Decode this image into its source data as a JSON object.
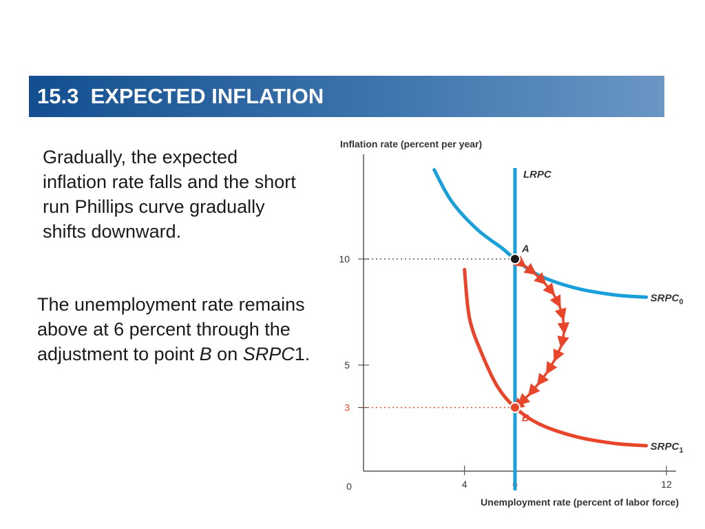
{
  "slide": {
    "section_number": "15.3",
    "section_title": "EXPECTED INFLATION",
    "para1": "Gradually, the expected inflation rate falls and the short run Phillips curve gradually shifts downward.",
    "para2": {
      "t1": "The unemployment rate remains above at 6 percent through the adjustment to point ",
      "t2": "B",
      "t3": " on ",
      "t4": "SRPC",
      "t5": "1."
    }
  },
  "colors": {
    "title_bar": "#1a5493",
    "srpc0": "#1aa0d8",
    "srpc1": "#e8452a",
    "lrpc": "#1aa0d8",
    "axis": "#555555"
  },
  "chart_data": {
    "type": "line",
    "ylabel": "Inflation rate (percent per year)",
    "xlabel": "Unemployment rate (percent of labor force)",
    "xlim": [
      0,
      12
    ],
    "ylim": [
      0,
      15
    ],
    "x_ticks": [
      {
        "value": 4,
        "label": "4"
      },
      {
        "value": 6,
        "label": "6",
        "highlight": true
      },
      {
        "value": 12,
        "label": "12"
      }
    ],
    "y_ticks": [
      {
        "value": 10,
        "label": "10"
      },
      {
        "value": 5,
        "label": "5"
      },
      {
        "value": 3,
        "label": "3",
        "highlight": true
      }
    ],
    "origin_label": "0",
    "series": [
      {
        "name": "SRPC0",
        "label_main": "SRPC",
        "label_sub": "0",
        "color": "#1aa0d8",
        "points": [
          [
            2.8,
            14.2
          ],
          [
            3.5,
            12.7
          ],
          [
            4.5,
            11.4
          ],
          [
            5.5,
            10.5
          ],
          [
            6.0,
            10.0
          ],
          [
            7.0,
            9.2
          ],
          [
            8.5,
            8.6
          ],
          [
            10.0,
            8.3
          ],
          [
            11.2,
            8.2
          ]
        ]
      },
      {
        "name": "SRPC1",
        "label_main": "SRPC",
        "label_sub": "1",
        "color": "#e8452a",
        "points": [
          [
            4.0,
            9.5
          ],
          [
            4.2,
            7.2
          ],
          [
            4.7,
            5.5
          ],
          [
            5.3,
            4.0
          ],
          [
            6.0,
            3.0
          ],
          [
            7.0,
            2.2
          ],
          [
            8.5,
            1.6
          ],
          [
            10.0,
            1.3
          ],
          [
            11.2,
            1.2
          ]
        ]
      }
    ],
    "lrpc": {
      "label": "LRPC",
      "x": 6,
      "color": "#1aa0d8"
    },
    "points": [
      {
        "name": "A",
        "x": 6,
        "y": 10,
        "color": "#1a1a1a"
      },
      {
        "name": "B",
        "x": 6,
        "y": 3,
        "color": "#e8452a"
      }
    ],
    "adjustment_path": [
      [
        6.0,
        10.0
      ],
      [
        6.35,
        9.7
      ],
      [
        6.75,
        9.35
      ],
      [
        7.15,
        8.9
      ],
      [
        7.5,
        8.4
      ],
      [
        7.75,
        7.85
      ],
      [
        7.9,
        7.25
      ],
      [
        7.95,
        6.6
      ],
      [
        7.85,
        5.95
      ],
      [
        7.6,
        5.3
      ],
      [
        7.3,
        4.7
      ],
      [
        6.95,
        4.15
      ],
      [
        6.6,
        3.65
      ],
      [
        6.2,
        3.2
      ],
      [
        6.0,
        3.0
      ]
    ]
  }
}
